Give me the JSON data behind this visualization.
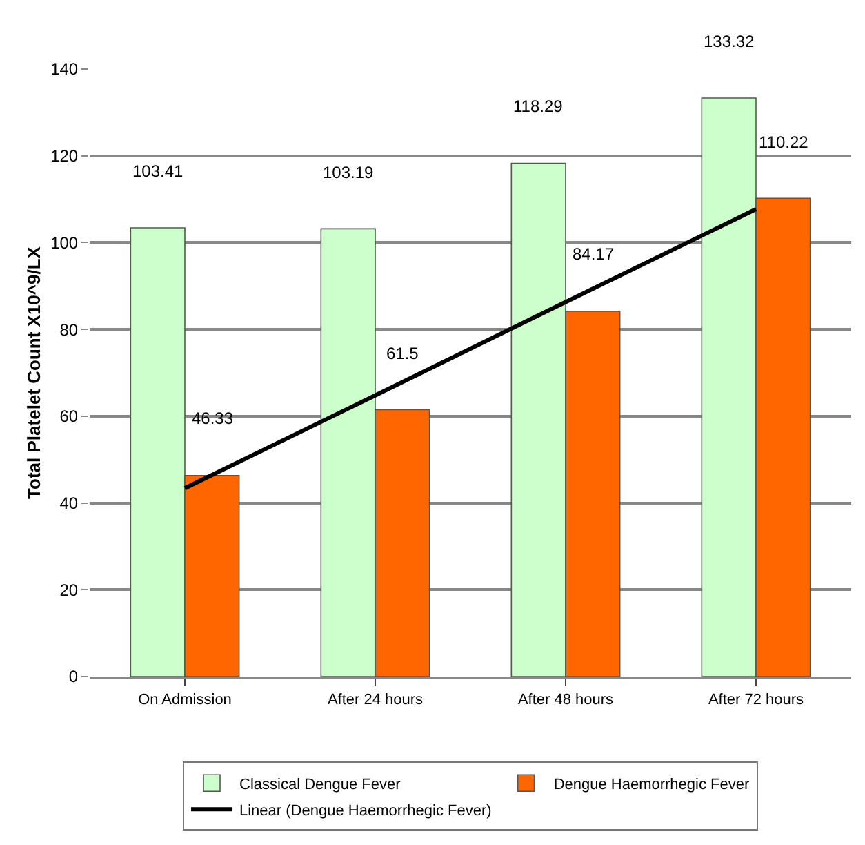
{
  "chart_data": {
    "type": "bar",
    "ylabel": "Total Platelet Count X10^9/LX",
    "categories": [
      "On Admission",
      "After 24 hours",
      "After 48 hours",
      "After 72 hours"
    ],
    "series": [
      {
        "name": "Classical Dengue Fever",
        "color": "#ccffcc",
        "values": [
          103.41,
          103.19,
          118.29,
          133.32
        ],
        "value_labels": [
          "103.41",
          "103.19",
          "118.29",
          "133.32"
        ]
      },
      {
        "name": "Dengue Haemorrhegic Fever",
        "color": "#ff6600",
        "values": [
          46.33,
          61.5,
          84.17,
          110.22
        ],
        "value_labels": [
          "46.33",
          "61.5",
          "84.17",
          "110.22"
        ]
      },
      {
        "name": "Linear (Dengue Haemorrhegic Fever)",
        "type": "line",
        "color": "#000000",
        "values": [
          43.4,
          64.8,
          86.3,
          107.7
        ]
      }
    ],
    "ylim": [
      0,
      140
    ],
    "yticks": [
      0,
      20,
      40,
      60,
      80,
      100,
      120,
      140
    ],
    "grid": "y",
    "legend": "bottom",
    "marker": "none"
  }
}
